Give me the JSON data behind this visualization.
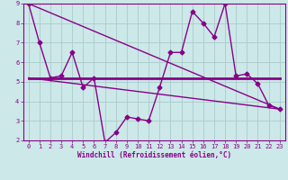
{
  "title": "Windchill (Refroidissement éolien,°C)",
  "background_color": "#cce8e8",
  "grid_color": "#aacccc",
  "line_color": "#880088",
  "x_min": 0,
  "x_max": 23,
  "y_min": 2,
  "y_max": 9,
  "line1_x": [
    0,
    1,
    2,
    3,
    4,
    5,
    6,
    7,
    8,
    9,
    10,
    11,
    12,
    13,
    14,
    15,
    16,
    17,
    18,
    19,
    20,
    21,
    22,
    23
  ],
  "line1_y": [
    9.0,
    7.0,
    5.2,
    5.3,
    6.5,
    4.7,
    5.2,
    1.9,
    2.4,
    3.2,
    3.1,
    3.0,
    4.7,
    6.5,
    6.5,
    8.6,
    8.0,
    7.3,
    9.0,
    5.3,
    5.4,
    4.9,
    3.8,
    3.6
  ],
  "line2_x": [
    0,
    23
  ],
  "line2_y": [
    5.2,
    5.2
  ],
  "line3_x": [
    0,
    23
  ],
  "line3_y": [
    5.2,
    3.6
  ],
  "line4_x": [
    0,
    23
  ],
  "line4_y": [
    9.0,
    3.6
  ]
}
